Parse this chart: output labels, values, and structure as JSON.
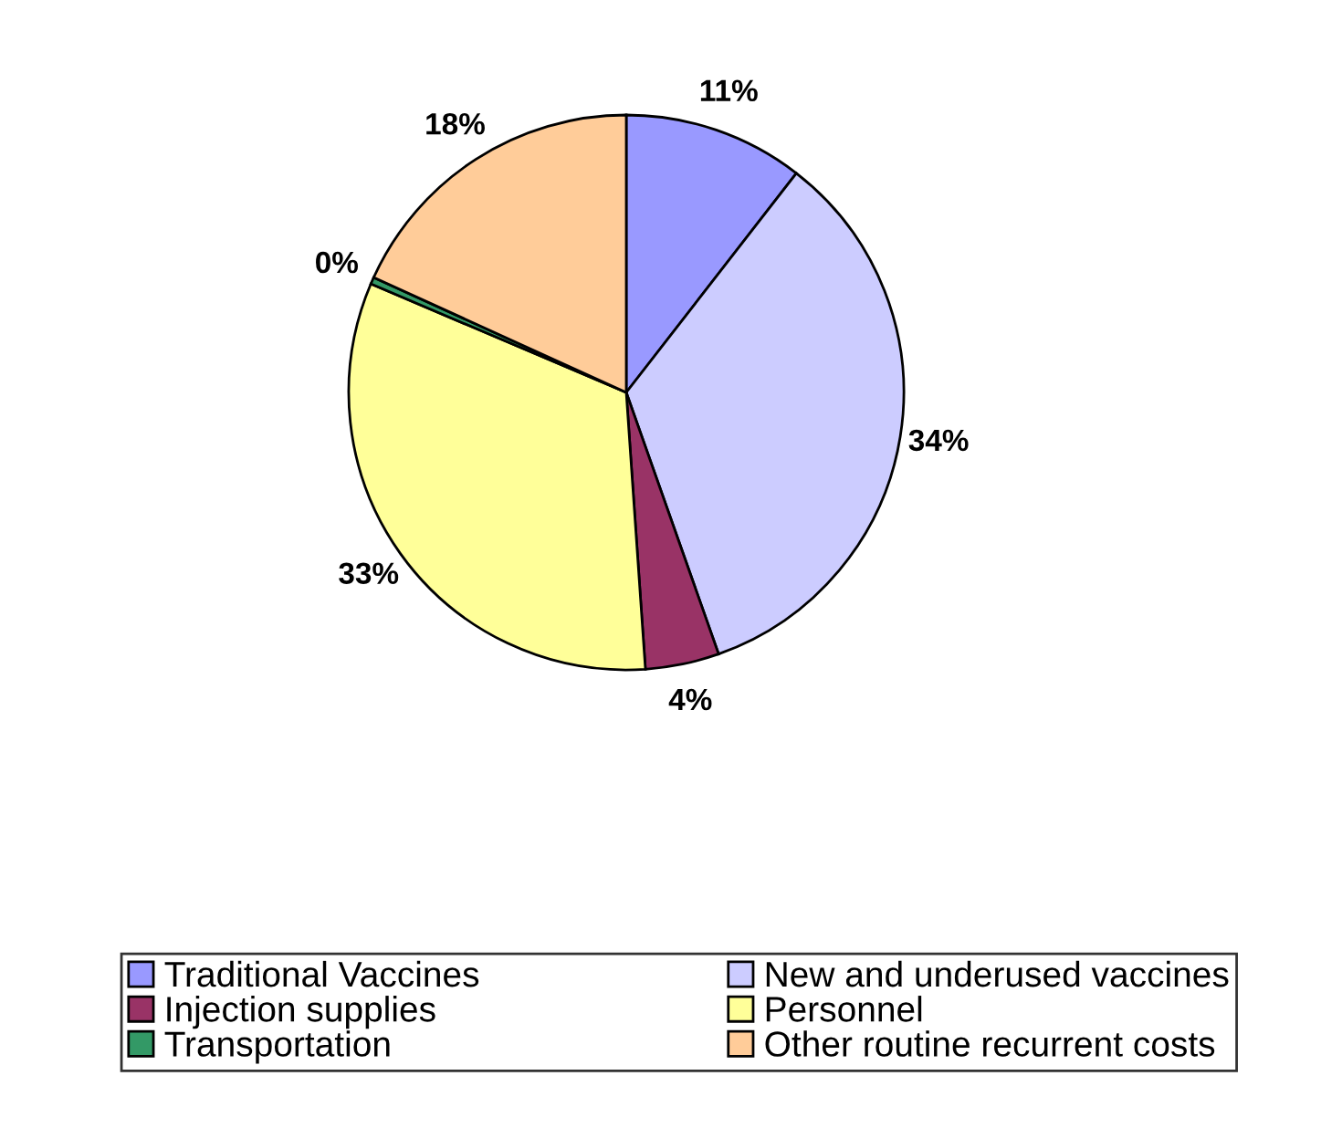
{
  "chart_data": {
    "type": "pie",
    "categories": [
      "Traditional Vaccines",
      "New and underused vaccines",
      "Injection supplies",
      "Personnel",
      "Transportation",
      "Other routine recurrent costs"
    ],
    "values": [
      10.5,
      34.1,
      4.3,
      32.5,
      0.4,
      18.2
    ],
    "value_labels": [
      "11%",
      "34%",
      "4%",
      "33%",
      "0%",
      "18%"
    ],
    "colors": [
      "#9999ff",
      "#ccccff",
      "#993366",
      "#ffff99",
      "#339966",
      "#ffcc99"
    ],
    "legend": "bottom"
  }
}
